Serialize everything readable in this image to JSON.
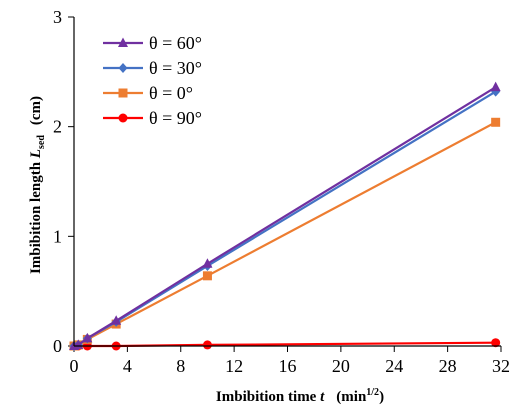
{
  "chart_data": {
    "type": "line",
    "xlabel": {
      "main": "Imbibition time ",
      "var": "t",
      "unit_open": "(min",
      "unit_sup": "1/2",
      "unit_close": ")"
    },
    "ylabel": {
      "main": "Imbibition length ",
      "var": "L",
      "sub": "sed",
      "unit": "(cm)"
    },
    "xlim": [
      0,
      32
    ],
    "ylim": [
      0,
      3
    ],
    "x_ticks": [
      "0",
      "4",
      "8",
      "12",
      "16",
      "20",
      "24",
      "28",
      "32"
    ],
    "y_ticks": [
      "0",
      "1",
      "2",
      "3"
    ],
    "legend_position": "top-left",
    "series": [
      {
        "name": "θ = 60°",
        "color": "#7030A0",
        "marker": "triangle",
        "x": [
          0,
          0.32,
          1.0,
          3.16,
          10.0,
          31.6
        ],
        "y": [
          0.0,
          0.01,
          0.07,
          0.23,
          0.75,
          2.36
        ]
      },
      {
        "name": "θ = 30°",
        "color": "#4472C4",
        "marker": "diamond",
        "x": [
          0,
          0.32,
          1.0,
          3.16,
          10.0,
          31.6
        ],
        "y": [
          0.0,
          0.01,
          0.07,
          0.22,
          0.73,
          2.32
        ]
      },
      {
        "name": "θ = 0°",
        "color": "#ED7D31",
        "marker": "square",
        "x": [
          0,
          0.32,
          1.0,
          3.16,
          10.0,
          31.6
        ],
        "y": [
          0.0,
          0.01,
          0.06,
          0.2,
          0.64,
          2.04
        ]
      },
      {
        "name": "θ = 90°",
        "color": "#FF0000",
        "marker": "circle",
        "x": [
          0,
          0.32,
          1.0,
          3.16,
          10.0,
          31.6
        ],
        "y": [
          0.0,
          0.0,
          0.0,
          0.0,
          0.01,
          0.03
        ]
      }
    ]
  }
}
